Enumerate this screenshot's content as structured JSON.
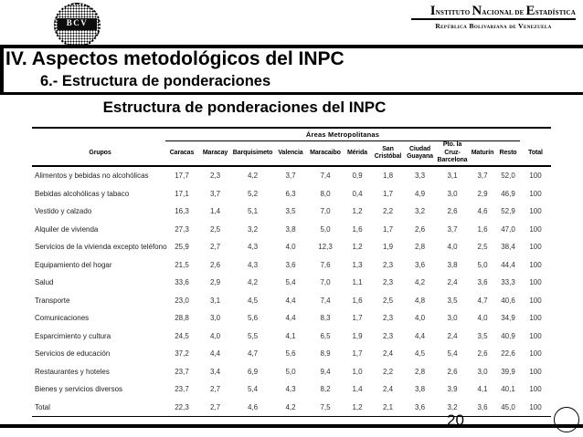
{
  "slide": {
    "title": "IV. Aspectos metodológicos del INPC",
    "subtitle": "6.- Estructura de ponderaciones",
    "page_number": "20"
  },
  "logos": {
    "bcv": {
      "seal_text": "BCV"
    },
    "ine": {
      "line1_parts": [
        {
          "big": "I",
          "rest": "NSTITUTO "
        },
        {
          "big": "N",
          "rest": "ACIONAL DE "
        },
        {
          "big": "E",
          "rest": "STADÍSTICA"
        }
      ],
      "line2": "República Bolivariana de Venezuela"
    }
  },
  "table": {
    "title": "Estructura de ponderaciones del INPC",
    "areas_header": "Áreas Metropolitanas",
    "groups_header": "Grupos",
    "columns": [
      "Caracas",
      "Maracay",
      "Barquisimeto",
      "Valencia",
      "Maracaibo",
      "Mérida",
      "San\nCristóbal",
      "Ciudad\nGuayana",
      "Pto. la Cruz-\nBarcelona",
      "Maturín",
      "Resto",
      "Total"
    ],
    "rows": [
      {
        "label": "Alimentos y bebidas no alcohólicas",
        "values": [
          "17,7",
          "2,3",
          "4,2",
          "3,7",
          "7,4",
          "0,9",
          "1,8",
          "3,3",
          "3,1",
          "3,7",
          "52,0",
          "100"
        ]
      },
      {
        "label": "Bebidas alcohólicas y tabaco",
        "values": [
          "17,1",
          "3,7",
          "5,2",
          "6,3",
          "8,0",
          "0,4",
          "1,7",
          "4,9",
          "3,0",
          "2,9",
          "46,9",
          "100"
        ]
      },
      {
        "label": "Vestido y calzado",
        "values": [
          "16,3",
          "1,4",
          "5,1",
          "3,5",
          "7,0",
          "1,2",
          "2,2",
          "3,2",
          "2,6",
          "4,6",
          "52,9",
          "100"
        ]
      },
      {
        "label": "Alquiler de vivienda",
        "values": [
          "27,3",
          "2,5",
          "3,2",
          "3,8",
          "5,0",
          "1,6",
          "1,7",
          "2,6",
          "3,7",
          "1,6",
          "47,0",
          "100"
        ]
      },
      {
        "label": "Servicios de la vivienda excepto teléfono",
        "values": [
          "25,9",
          "2,7",
          "4,3",
          "4,0",
          "12,3",
          "1,2",
          "1,9",
          "2,8",
          "4,0",
          "2,5",
          "38,4",
          "100"
        ]
      },
      {
        "label": "Equipamiento del hogar",
        "values": [
          "21,5",
          "2,6",
          "4,3",
          "3,6",
          "7,6",
          "1,3",
          "2,3",
          "3,6",
          "3,8",
          "5,0",
          "44,4",
          "100"
        ]
      },
      {
        "label": "Salud",
        "values": [
          "33,6",
          "2,9",
          "4,2",
          "5,4",
          "7,0",
          "1,1",
          "2,3",
          "4,2",
          "2,4",
          "3,6",
          "33,3",
          "100"
        ]
      },
      {
        "label": "Transporte",
        "values": [
          "23,0",
          "3,1",
          "4,5",
          "4,4",
          "7,4",
          "1,6",
          "2,5",
          "4,8",
          "3,5",
          "4,7",
          "40,6",
          "100"
        ]
      },
      {
        "label": "Comunicaciones",
        "values": [
          "28,8",
          "3,0",
          "5,6",
          "4,4",
          "8,3",
          "1,7",
          "2,3",
          "4,0",
          "3,0",
          "4,0",
          "34,9",
          "100"
        ]
      },
      {
        "label": "Esparcimiento y cultura",
        "values": [
          "24,5",
          "4,0",
          "5,5",
          "4,1",
          "6,5",
          "1,9",
          "2,3",
          "4,4",
          "2,4",
          "3,5",
          "40,9",
          "100"
        ]
      },
      {
        "label": "Servicios de educación",
        "values": [
          "37,2",
          "4,4",
          "4,7",
          "5,6",
          "8,9",
          "1,7",
          "2,4",
          "4,5",
          "5,4",
          "2,6",
          "22,6",
          "100"
        ]
      },
      {
        "label": "Restaurantes y hoteles",
        "values": [
          "23,7",
          "3,4",
          "6,9",
          "5,0",
          "9,4",
          "1,0",
          "2,2",
          "2,8",
          "2,6",
          "3,0",
          "39,9",
          "100"
        ]
      },
      {
        "label": "Bienes y servicios diversos",
        "values": [
          "23,7",
          "2,7",
          "5,4",
          "4,3",
          "8,2",
          "1,4",
          "2,4",
          "3,8",
          "3,9",
          "4,1",
          "40,1",
          "100"
        ]
      },
      {
        "label": "Total",
        "values": [
          "22,3",
          "2,7",
          "4,6",
          "4,2",
          "7,5",
          "1,2",
          "2,1",
          "3,6",
          "3,2",
          "3,6",
          "45,0",
          "100"
        ]
      }
    ]
  }
}
